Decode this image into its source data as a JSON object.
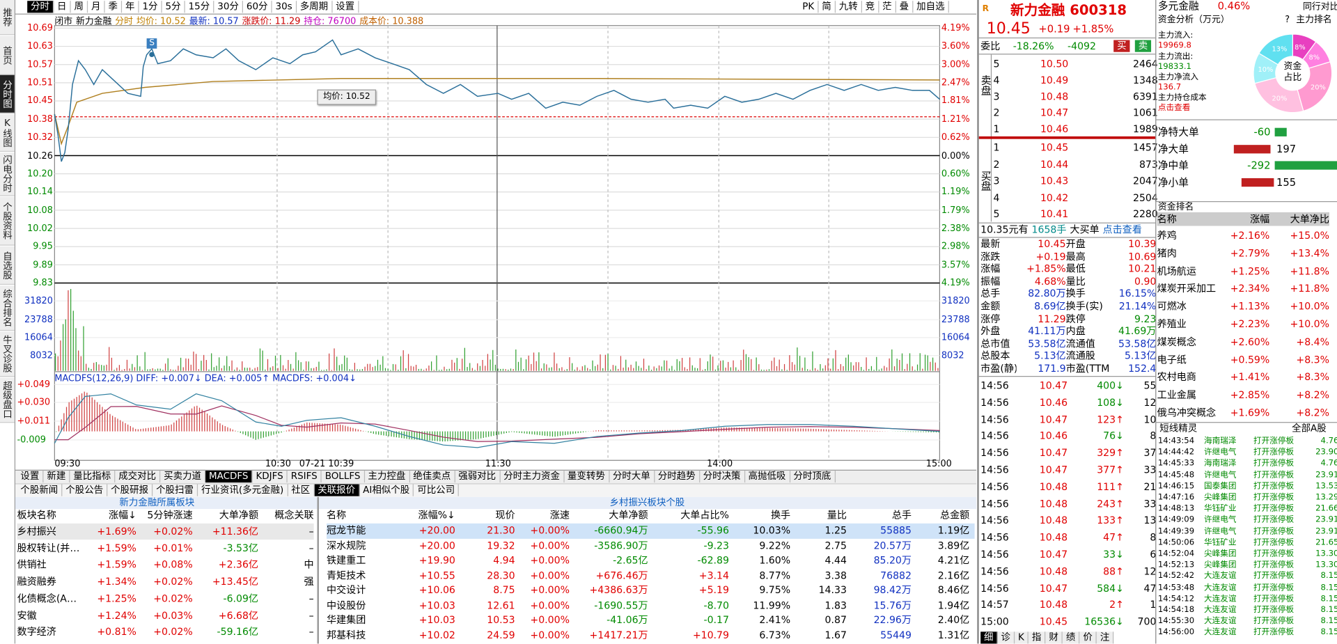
{
  "sidebar": [
    "推荐",
    "首页",
    "分时图",
    "K线图",
    "闪电分时",
    "个股资料",
    "自选股",
    "综合排名",
    "牛叉诊股",
    "超级盘口"
  ],
  "toolbar": {
    "left": [
      "分时",
      "日",
      "周",
      "月",
      "季",
      "年",
      "1分",
      "5分",
      "15分",
      "30分",
      "60分",
      "30s",
      "多周期",
      "设置"
    ],
    "right": [
      "PK",
      "简",
      "九转",
      "竞",
      "茫",
      "叠",
      "加自选"
    ]
  },
  "chart": {
    "header": [
      "闭市",
      "新力金融",
      "分时",
      "均价: 10.52",
      "最新: 10.57",
      "涨跌价: 11.29",
      "持仓: 76700",
      "成本价: 10.388"
    ],
    "price_ticks": [
      "10.69",
      "10.63",
      "10.57",
      "10.51",
      "10.45",
      "10.38",
      "10.32",
      "10.26",
      "10.20",
      "10.14",
      "10.08",
      "10.02",
      "9.95",
      "9.89",
      "9.83"
    ],
    "pct_ticks": [
      "4.19%",
      "3.60%",
      "3.00%",
      "2.47%",
      "1.81%",
      "1.21%",
      "0.62%",
      "0.00%",
      "0.60%",
      "1.19%",
      "1.79%",
      "2.38%",
      "2.98%",
      "3.57%",
      "4.19%"
    ],
    "vol_ticks": [
      "31820",
      "23788",
      "16064",
      "8032"
    ],
    "macd_header": "MACDFS(12,26,9) DIFF: +0.007↓ DEA: +0.005↑ MACDFS: +0.004↓",
    "macd_ticks": [
      "+0.049",
      "+0.030",
      "+0.011",
      "-0.009"
    ],
    "time_ticks": [
      "09:30",
      "10:30",
      "07-21 10:39",
      "11:30",
      "14:00",
      "15:00"
    ],
    "tooltip": "均价: 10.52",
    "marker": "S"
  },
  "indicator_tabs": [
    "设置",
    "新建",
    "量比指标",
    "成交对比",
    "买卖力道",
    "MACDFS",
    "KDJFS",
    "RSIFS",
    "BOLLFS",
    "主力控盘",
    "绝佳卖点",
    "强弱对比",
    "分时主力资金",
    "量变转势",
    "分时大单",
    "分时趋势",
    "分时决策",
    "高抛低吸",
    "分时顶底"
  ],
  "news_tabs": [
    "个股新闻",
    "个股公告",
    "个股研报",
    "个股扫雷",
    "行业资讯(多元金融)",
    "社区",
    "关联报价",
    "AI相似个股",
    "可比公司"
  ],
  "sector_panel": {
    "title": "新力金融所属板块",
    "columns": [
      "板块名称",
      "涨幅↓",
      "5分钟涨速",
      "大单净额",
      "概念关联"
    ],
    "rows": [
      [
        "乡村振兴",
        "+1.69%",
        "+0.02%",
        "+11.36亿",
        "–"
      ],
      [
        "股权转让(并…",
        "+1.59%",
        "+0.01%",
        "-3.53亿",
        "–"
      ],
      [
        "供销社",
        "+1.59%",
        "+0.08%",
        "+2.36亿",
        "中"
      ],
      [
        "融资融券",
        "+1.34%",
        "+0.02%",
        "+13.45亿",
        "强"
      ],
      [
        "化债概念(A…",
        "+1.25%",
        "+0.02%",
        "-6.09亿",
        "–"
      ],
      [
        "安徽",
        "+1.24%",
        "+0.03%",
        "+6.68亿",
        "–"
      ],
      [
        "数字经济",
        "+0.81%",
        "+0.02%",
        "-59.16亿",
        "–"
      ]
    ]
  },
  "stock_panel": {
    "title": "乡村振兴板块个股",
    "columns": [
      "名称",
      "涨幅%↓",
      "现价",
      "涨速",
      "大单净额",
      "大单占比%",
      "换手",
      "量比",
      "总手",
      "总金额"
    ],
    "rows": [
      [
        "冠龙节能",
        "+20.00",
        "21.30",
        "+0.00%",
        "-6660.94万",
        "-55.96",
        "10.03%",
        "1.25",
        "55885",
        "1.19亿"
      ],
      [
        "深水规院",
        "+20.00",
        "19.32",
        "+0.00%",
        "-3586.90万",
        "-9.23",
        "9.22%",
        "2.75",
        "20.57万",
        "3.89亿"
      ],
      [
        "铁建重工",
        "+19.90",
        "4.94",
        "+0.00%",
        "-2.65亿",
        "-62.89",
        "1.60%",
        "4.44",
        "85.20万",
        "4.21亿"
      ],
      [
        "青矩技术",
        "+10.55",
        "28.30",
        "+0.00%",
        "+676.46万",
        "+3.14",
        "8.77%",
        "3.38",
        "76882",
        "2.16亿"
      ],
      [
        "中交设计",
        "+10.06",
        "8.75",
        "+0.00%",
        "+4386.63万",
        "+5.19",
        "9.75%",
        "14.33",
        "98.42万",
        "8.46亿"
      ],
      [
        "中设股份",
        "+10.03",
        "12.61",
        "+0.00%",
        "-1690.55万",
        "-8.70",
        "11.99%",
        "1.83",
        "15.76万",
        "1.94亿"
      ],
      [
        "华建集团",
        "+10.03",
        "10.53",
        "+0.00%",
        "-41.06万",
        "-0.17",
        "2.41%",
        "0.87",
        "22.96万",
        "2.40亿"
      ],
      [
        "邦基科技",
        "+10.02",
        "24.59",
        "+0.00%",
        "+1417.21万",
        "+10.79",
        "6.73%",
        "1.67",
        "55449",
        "1.31亿"
      ]
    ]
  },
  "quote": {
    "badge": "R",
    "name": "新力金融 600318",
    "price": "10.45",
    "change": "+0.19",
    "pct": "+1.85%",
    "weibi_label": "委比",
    "weibi_pct": "-18.26%",
    "weibi_diff": "-4092",
    "buy_btn": "买",
    "sell_btn": "卖",
    "sell_label": "卖盘",
    "buy_label": "买盘",
    "sell": [
      [
        "5",
        "10.50",
        "2464"
      ],
      [
        "4",
        "10.49",
        "1348"
      ],
      [
        "3",
        "10.48",
        "6391"
      ],
      [
        "2",
        "10.47",
        "1061"
      ],
      [
        "1",
        "10.46",
        "1989"
      ]
    ],
    "buy": [
      [
        "1",
        "10.45",
        "1457"
      ],
      [
        "2",
        "10.44",
        "873"
      ],
      [
        "3",
        "10.43",
        "2047"
      ],
      [
        "4",
        "10.42",
        "2504"
      ],
      [
        "5",
        "10.41",
        "2280"
      ]
    ],
    "bigorder": [
      "10.35元有",
      "1658手",
      "大买单",
      "点击查看"
    ],
    "stats": [
      [
        "最新",
        "10.45",
        "开盘",
        "10.39"
      ],
      [
        "涨跌",
        "+0.19",
        "最高",
        "10.69"
      ],
      [
        "涨幅",
        "+1.85%",
        "最低",
        "10.21"
      ],
      [
        "振幅",
        "4.68%",
        "量比",
        "0.90"
      ],
      [
        "总手",
        "82.80万",
        "换手",
        "16.15%"
      ],
      [
        "金额",
        "8.69亿",
        "换手(实)",
        "21.14%"
      ],
      [
        "涨停",
        "11.29",
        "跌停",
        "9.23"
      ],
      [
        "外盘",
        "41.11万",
        "内盘",
        "41.69万"
      ],
      [
        "总市值",
        "53.58亿",
        "流通值",
        "53.58亿"
      ],
      [
        "总股本",
        "5.13亿",
        "流通股",
        "5.13亿"
      ],
      [
        "市盈(静)",
        "171.9",
        "市盈(TTM)",
        "152.4"
      ]
    ],
    "trades": [
      [
        "14:56",
        "10.47",
        "400↓",
        "55"
      ],
      [
        "14:56",
        "10.46",
        "108↓",
        "12"
      ],
      [
        "14:56",
        "10.47",
        "123↑",
        "10"
      ],
      [
        "14:56",
        "10.46",
        "76↓",
        "8"
      ],
      [
        "14:56",
        "10.47",
        "329↑",
        "37"
      ],
      [
        "14:56",
        "10.47",
        "377↑",
        "33"
      ],
      [
        "14:56",
        "10.48",
        "111↑",
        "21"
      ],
      [
        "14:56",
        "10.48",
        "243↑",
        "33"
      ],
      [
        "14:56",
        "10.48",
        "133↑",
        "13"
      ],
      [
        "14:56",
        "10.48",
        "47↑",
        "8"
      ],
      [
        "14:56",
        "10.47",
        "33↓",
        "6"
      ],
      [
        "14:56",
        "10.48",
        "88↑",
        "12"
      ],
      [
        "14:56",
        "10.47",
        "584↓",
        "47"
      ],
      [
        "14:57",
        "10.48",
        "2↑",
        "1"
      ],
      [
        "15:00",
        "10.45",
        "16536↓",
        "700"
      ]
    ],
    "bottom_tabs": [
      "细",
      "诊",
      "K",
      "指",
      "财",
      "绩",
      "价",
      "注"
    ]
  },
  "fund": {
    "industry": "多元金融",
    "industry_pct": "0.46%",
    "compare": "同行对比",
    "title": "资金分析（万元）",
    "help": "?",
    "rank_link": "主力排名",
    "lines": [
      "主力流入:",
      "19969.8",
      "主力流出:",
      "19833.1",
      "主力净流入",
      "136.7",
      "主力持仓成本",
      "点击查看"
    ],
    "donut_title": "资金占比",
    "donut_labels": [
      "8%",
      "8%",
      "20%",
      "20%",
      "10%",
      "13%"
    ],
    "net": [
      [
        "净特大单",
        "-60"
      ],
      [
        "净大单",
        "197"
      ],
      [
        "净中单",
        "-292"
      ],
      [
        "净小单",
        "155"
      ]
    ]
  },
  "ranking": {
    "title": "资金排名",
    "columns": [
      "名称",
      "涨幅",
      "大单净比"
    ],
    "rows": [
      [
        "养鸡",
        "+2.16%",
        "+15.0%"
      ],
      [
        "猪肉",
        "+2.79%",
        "+13.4%"
      ],
      [
        "机场航运",
        "+1.25%",
        "+11.8%"
      ],
      [
        "煤炭开采加工",
        "+2.34%",
        "+11.8%"
      ],
      [
        "可燃冰",
        "+1.13%",
        "+10.0%"
      ],
      [
        "养殖业",
        "+2.23%",
        "+10.0%"
      ],
      [
        "煤炭概念",
        "+2.60%",
        "+8.4%"
      ],
      [
        "电子纸",
        "+0.59%",
        "+8.3%"
      ],
      [
        "农村电商",
        "+1.41%",
        "+8.3%"
      ],
      [
        "工业金属",
        "+2.85%",
        "+8.2%"
      ],
      [
        "俄乌冲突概念",
        "+1.69%",
        "+8.2%"
      ]
    ]
  },
  "sprite": {
    "title": "短线精灵",
    "scope": "全部A股",
    "rows": [
      [
        "14:43:54",
        "海南瑞泽",
        "打开涨停板",
        "4.76"
      ],
      [
        "14:44:42",
        "许继电气",
        "打开涨停板",
        "23.90"
      ],
      [
        "14:45:33",
        "海南瑞泽",
        "打开涨停板",
        "4.76"
      ],
      [
        "14:45:48",
        "许继电气",
        "打开涨停板",
        "23.91"
      ],
      [
        "14:46:15",
        "国泰集团",
        "打开涨停板",
        "13.53"
      ],
      [
        "14:47:16",
        "尖峰集团",
        "打开涨停板",
        "13.29"
      ],
      [
        "14:48:13",
        "华钰矿业",
        "打开涨停板",
        "21.66"
      ],
      [
        "14:49:09",
        "许继电气",
        "打开涨停板",
        "23.91"
      ],
      [
        "14:49:39",
        "许继电气",
        "打开涨停板",
        "23.91"
      ],
      [
        "14:50:06",
        "华钰矿业",
        "打开涨停板",
        "21.65"
      ],
      [
        "14:52:04",
        "尖峰集团",
        "打开涨停板",
        "13.30"
      ],
      [
        "14:52:13",
        "尖峰集团",
        "打开涨停板",
        "13.30"
      ],
      [
        "14:52:42",
        "大连友谊",
        "打开涨停板",
        "8.15"
      ],
      [
        "14:53:48",
        "大连友谊",
        "打开涨停板",
        "8.15"
      ],
      [
        "14:54:12",
        "大连友谊",
        "打开涨停板",
        "8.15"
      ],
      [
        "14:54:18",
        "大连友谊",
        "打开涨停板",
        "8.15"
      ],
      [
        "14:55:30",
        "大连友谊",
        "打开涨停板",
        "8.15"
      ],
      [
        "14:56:00",
        "大连友谊",
        "打开涨停板",
        "8.15"
      ]
    ]
  }
}
